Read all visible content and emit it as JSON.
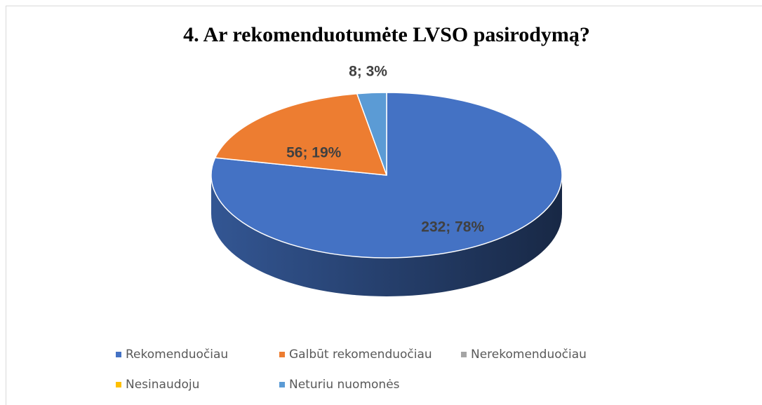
{
  "chart_data": {
    "type": "pie3d",
    "title": "4. Ar rekomenduotumėte LVSO pasirodymą?",
    "categories": [
      "Rekomenduočiau",
      "Galbūt rekomenduočiau",
      "Nerekomenduočiau",
      "Nesinaudoju",
      "Neturiu nuomonės"
    ],
    "values": [
      232,
      56,
      0,
      0,
      8
    ],
    "value_labels": [
      "232; 78%",
      "56; 19%",
      null,
      null,
      "8; 3%"
    ],
    "colors": [
      "#4472c4",
      "#ed7d31",
      "#a5a5a5",
      "#ffc000",
      "#5b9bd5"
    ],
    "legend": "bottom"
  }
}
